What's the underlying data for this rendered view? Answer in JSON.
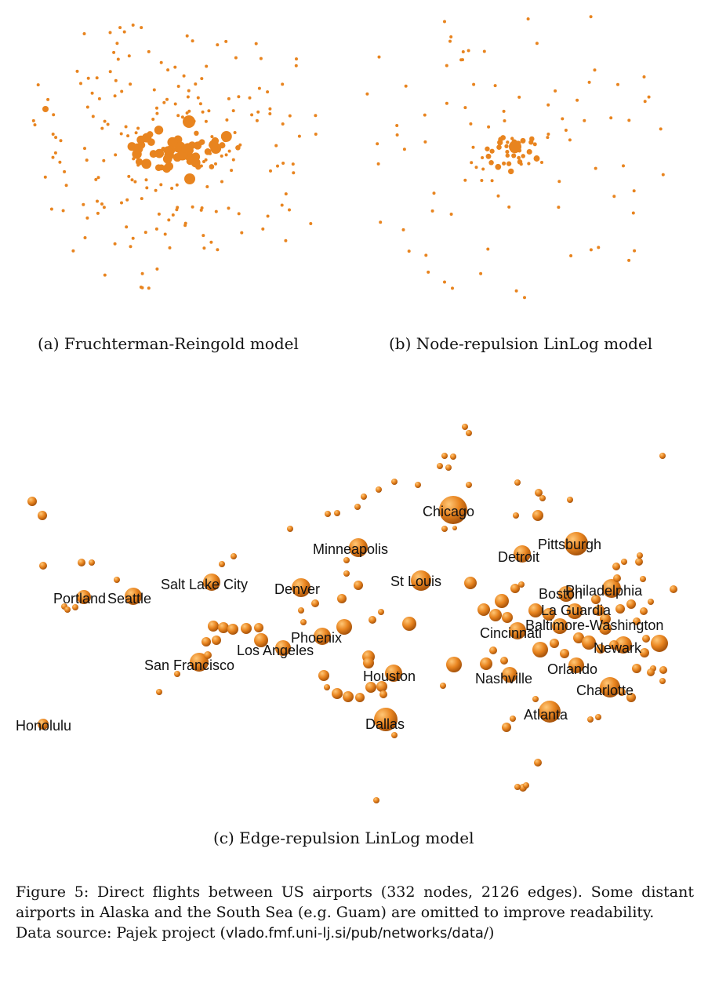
{
  "figure": {
    "subcaption_a": "(a) Fruchterman-Reingold model",
    "subcaption_b": "(b) Node-repulsion LinLog model",
    "subcaption_c": "(c) Edge-repulsion LinLog model",
    "caption_main": "Figure 5: Direct flights between US airports (332 nodes, 2126 edges). Some distant airports in Alaska and the South Sea (e.g. Guam) are omitted to improve readability.",
    "caption_source_prefix": "Data source: Pajek project (",
    "caption_source_url": "vlado.fmf.uni-lj.si/pub/networks/data/",
    "caption_source_suffix": ")"
  },
  "colors": {
    "node": "#e8841f",
    "node_dark": "#a8540b",
    "node_light": "#ffc777"
  },
  "airport_labels": [
    "Chicago",
    "Pittsburgh",
    "Minneapolis",
    "Detroit",
    "St Louis",
    "Salt Lake City",
    "Denver",
    "Boston",
    "Philadelphia",
    "Portland",
    "Seattle",
    "La Guardia",
    "Baltimore-Washington",
    "Cincinnati",
    "Phoenix",
    "Newark",
    "Los Angeles",
    "San Francisco",
    "Orlando",
    "Houston",
    "Nashville",
    "Charlotte",
    "Atlanta",
    "Dallas",
    "Honolulu"
  ]
}
